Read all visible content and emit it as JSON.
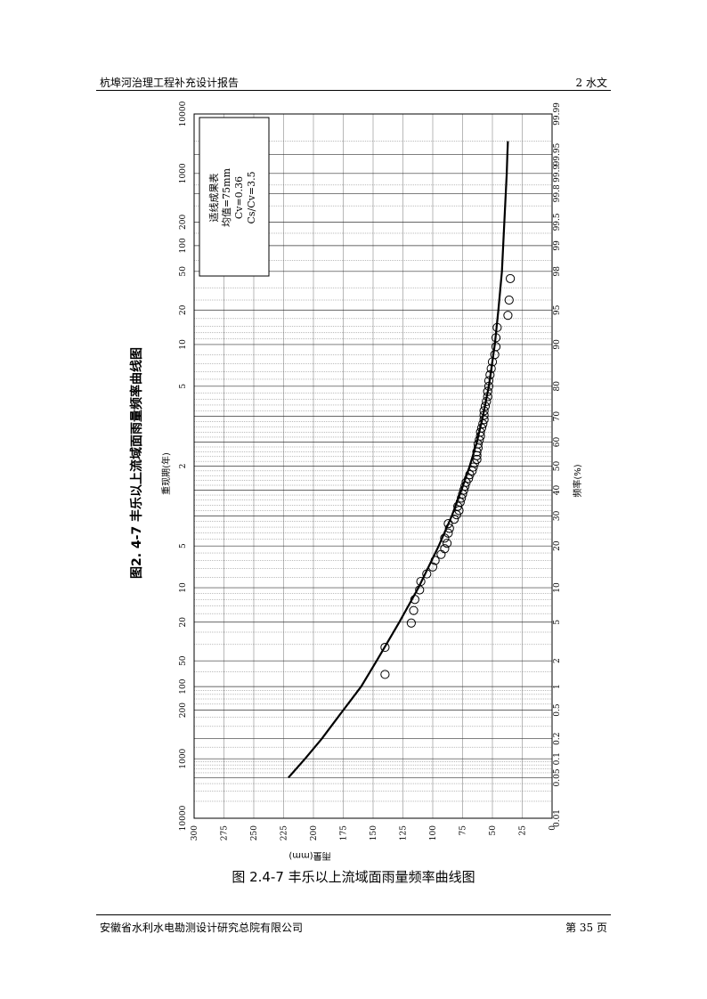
{
  "header": {
    "left": "杭埠河治理工程补充设计报告",
    "right": "2   水文"
  },
  "footer": {
    "left": "安徽省水利水电勘测设计研究总院有限公司",
    "right": "第 35 页"
  },
  "figure": {
    "rotated_title": "图2. 4-7    丰乐以上流域面雨量频率曲线图",
    "caption": "图 2.4-7    丰乐以上流域面雨量频率曲线图"
  },
  "chart_data": {
    "type": "scatter",
    "orientation": "rotated-90",
    "xlabel": "频率(%)",
    "x2label": "重现期(年)",
    "ylabel": "雨量(mm)",
    "x_scale": "normal-probability",
    "xlim": [
      0.01,
      99.99
    ],
    "ylim": [
      0,
      300
    ],
    "grid": true,
    "x_ticks": [
      "0.01",
      "0.05",
      "0.1",
      "0.2",
      "0.5",
      "1",
      "2",
      "5",
      "10",
      "20",
      "30",
      "40",
      "50",
      "60",
      "70",
      "80",
      "90",
      "95",
      "98",
      "99",
      "99.5",
      "99.8",
      "99.9",
      "99.95",
      "99.99"
    ],
    "x2_ticks": [
      "10000",
      "1000",
      "200",
      "100",
      "50",
      "20",
      "10",
      "5",
      "2",
      "5",
      "10",
      "20",
      "50",
      "100",
      "200",
      "1000",
      "10000"
    ],
    "y_ticks": [
      "0",
      "25",
      "50",
      "75",
      "100",
      "125",
      "150",
      "175",
      "200",
      "225",
      "250",
      "275",
      "300"
    ],
    "legend": {
      "lines": [
        "适线成果表",
        "均值=75mm",
        "Cv=0.36",
        "Cs/Cv=3.5"
      ],
      "placement": "top-left"
    },
    "series": [
      {
        "kind": "fitted-curve",
        "points": [
          {
            "p": 0.05,
            "y": 221
          },
          {
            "p": 0.1,
            "y": 207
          },
          {
            "p": 0.2,
            "y": 193
          },
          {
            "p": 0.5,
            "y": 175
          },
          {
            "p": 1,
            "y": 160
          },
          {
            "p": 2,
            "y": 147
          },
          {
            "p": 5,
            "y": 128
          },
          {
            "p": 10,
            "y": 112
          },
          {
            "p": 20,
            "y": 95
          },
          {
            "p": 30,
            "y": 84
          },
          {
            "p": 40,
            "y": 76
          },
          {
            "p": 50,
            "y": 69
          },
          {
            "p": 60,
            "y": 63
          },
          {
            "p": 70,
            "y": 58
          },
          {
            "p": 80,
            "y": 53
          },
          {
            "p": 90,
            "y": 48
          },
          {
            "p": 95,
            "y": 45
          },
          {
            "p": 98,
            "y": 42
          },
          {
            "p": 99,
            "y": 41
          },
          {
            "p": 99.5,
            "y": 40
          },
          {
            "p": 99.9,
            "y": 38
          },
          {
            "p": 99.95,
            "y": 37.5
          },
          {
            "p": 99.97,
            "y": 37
          }
        ]
      },
      {
        "kind": "observed",
        "points": [
          {
            "p": 1.4,
            "y": 140
          },
          {
            "p": 2.8,
            "y": 140
          },
          {
            "p": 4.9,
            "y": 118
          },
          {
            "p": 6.4,
            "y": 116
          },
          {
            "p": 8.0,
            "y": 115
          },
          {
            "p": 9.6,
            "y": 111
          },
          {
            "p": 11.2,
            "y": 110
          },
          {
            "p": 12.8,
            "y": 105
          },
          {
            "p": 14.4,
            "y": 100
          },
          {
            "p": 16.0,
            "y": 98
          },
          {
            "p": 17.6,
            "y": 93
          },
          {
            "p": 19.2,
            "y": 90
          },
          {
            "p": 20.8,
            "y": 88
          },
          {
            "p": 22.4,
            "y": 90
          },
          {
            "p": 24.0,
            "y": 87
          },
          {
            "p": 25.6,
            "y": 86
          },
          {
            "p": 27.2,
            "y": 87
          },
          {
            "p": 28.8,
            "y": 82
          },
          {
            "p": 30.4,
            "y": 80
          },
          {
            "p": 32.0,
            "y": 78
          },
          {
            "p": 33.6,
            "y": 79
          },
          {
            "p": 35.2,
            "y": 77
          },
          {
            "p": 36.8,
            "y": 76
          },
          {
            "p": 38.4,
            "y": 75
          },
          {
            "p": 40.0,
            "y": 74
          },
          {
            "p": 41.6,
            "y": 73
          },
          {
            "p": 43.2,
            "y": 72
          },
          {
            "p": 44.8,
            "y": 70
          },
          {
            "p": 46.4,
            "y": 69
          },
          {
            "p": 48.0,
            "y": 67
          },
          {
            "p": 49.6,
            "y": 66
          },
          {
            "p": 51.2,
            "y": 65
          },
          {
            "p": 52.8,
            "y": 63
          },
          {
            "p": 54.4,
            "y": 63
          },
          {
            "p": 56.0,
            "y": 63
          },
          {
            "p": 57.6,
            "y": 62
          },
          {
            "p": 59.2,
            "y": 62
          },
          {
            "p": 60.8,
            "y": 61
          },
          {
            "p": 62.4,
            "y": 60
          },
          {
            "p": 64.0,
            "y": 60
          },
          {
            "p": 65.6,
            "y": 59
          },
          {
            "p": 67.2,
            "y": 58
          },
          {
            "p": 68.8,
            "y": 57
          },
          {
            "p": 70.4,
            "y": 57
          },
          {
            "p": 72.0,
            "y": 57
          },
          {
            "p": 73.6,
            "y": 56
          },
          {
            "p": 75.2,
            "y": 55
          },
          {
            "p": 76.8,
            "y": 54
          },
          {
            "p": 78.4,
            "y": 54
          },
          {
            "p": 80.0,
            "y": 53
          },
          {
            "p": 81.6,
            "y": 53
          },
          {
            "p": 83.2,
            "y": 52
          },
          {
            "p": 84.8,
            "y": 51
          },
          {
            "p": 86.4,
            "y": 50
          },
          {
            "p": 88.0,
            "y": 48
          },
          {
            "p": 89.6,
            "y": 47
          },
          {
            "p": 91.2,
            "y": 47
          },
          {
            "p": 92.8,
            "y": 46
          },
          {
            "p": 94.4,
            "y": 37
          },
          {
            "p": 96.0,
            "y": 36
          },
          {
            "p": 97.6,
            "y": 35
          }
        ]
      }
    ]
  }
}
